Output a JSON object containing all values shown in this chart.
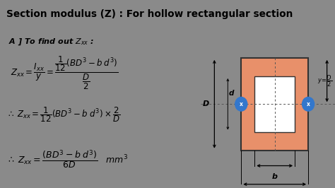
{
  "title": "Section modulus (Z) : For hollow rectangular section",
  "title_bg": "#7a7a7a",
  "title_color": "black",
  "content_bg": "#c0c0c0",
  "page_bg": "#8a8a8a",
  "diagram_bg": "#d8d8d8",
  "rect_outer_color": "#e8906a",
  "rect_border_color": "#333333",
  "dot_color": "#3377cc",
  "subtitle": "A ] To find out $Z_{xx}$ :",
  "eq1_left": "$Z_{xx} = \\dfrac{I_{xx}}{y} = $",
  "eq1_right": "$\\dfrac{\\dfrac{1}{12}(BD^3 - b\\,d^3)}{\\dfrac{D}{2}}$",
  "eq2": "$\\therefore\\; Z_{xx} = \\dfrac{1}{12}(BD^3 - b\\,d^3) \\times \\dfrac{2}{D}$",
  "eq3": "$\\therefore\\; Z_{xx} = \\dfrac{(BD^3 - b\\,d^3)}{6D}\\quad mm^3$"
}
